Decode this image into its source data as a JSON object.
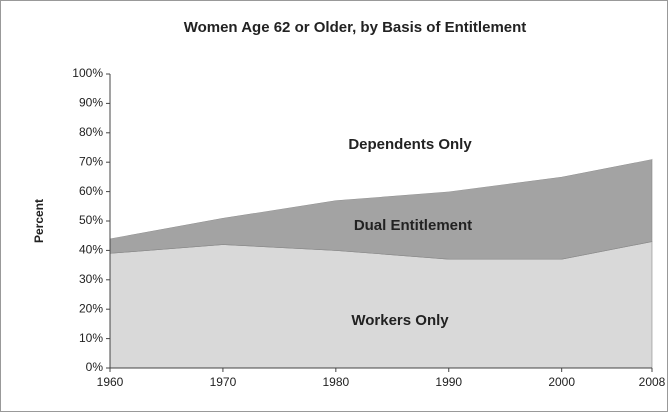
{
  "chart_data": {
    "type": "stacked-area",
    "title": "Women Age 62 or Older, by Basis of Entitlement",
    "y_label": "Percent",
    "x": [
      1960,
      1970,
      1980,
      1990,
      2000,
      2008
    ],
    "series": [
      {
        "name": "Workers Only",
        "color": "#d9d9d9",
        "values": [
          39,
          42,
          40,
          37,
          37,
          43
        ]
      },
      {
        "name": "Dual Entitlement",
        "color": "#a3a3a3",
        "values": [
          5,
          9,
          17,
          23,
          28,
          28
        ]
      },
      {
        "name": "Dependents Only",
        "color": "#ffffff",
        "values": [
          56,
          49,
          43,
          40,
          35,
          29
        ]
      }
    ],
    "xlim": [
      1960,
      2008
    ],
    "xticks": [
      1960,
      1970,
      1980,
      1990,
      2000,
      2008
    ],
    "ylim": [
      0,
      100
    ],
    "yticks": [
      {
        "value": 0,
        "label": "0%"
      },
      {
        "value": 10,
        "label": "10%"
      },
      {
        "value": 20,
        "label": "20%"
      },
      {
        "value": 30,
        "label": "30%"
      },
      {
        "value": 40,
        "label": "40%"
      },
      {
        "value": 50,
        "label": "50%"
      },
      {
        "value": 60,
        "label": "60%"
      },
      {
        "value": 70,
        "label": "70%"
      },
      {
        "value": 80,
        "label": "80%"
      },
      {
        "value": 90,
        "label": "90%"
      },
      {
        "value": 100,
        "label": "100%"
      }
    ],
    "grid": false
  }
}
